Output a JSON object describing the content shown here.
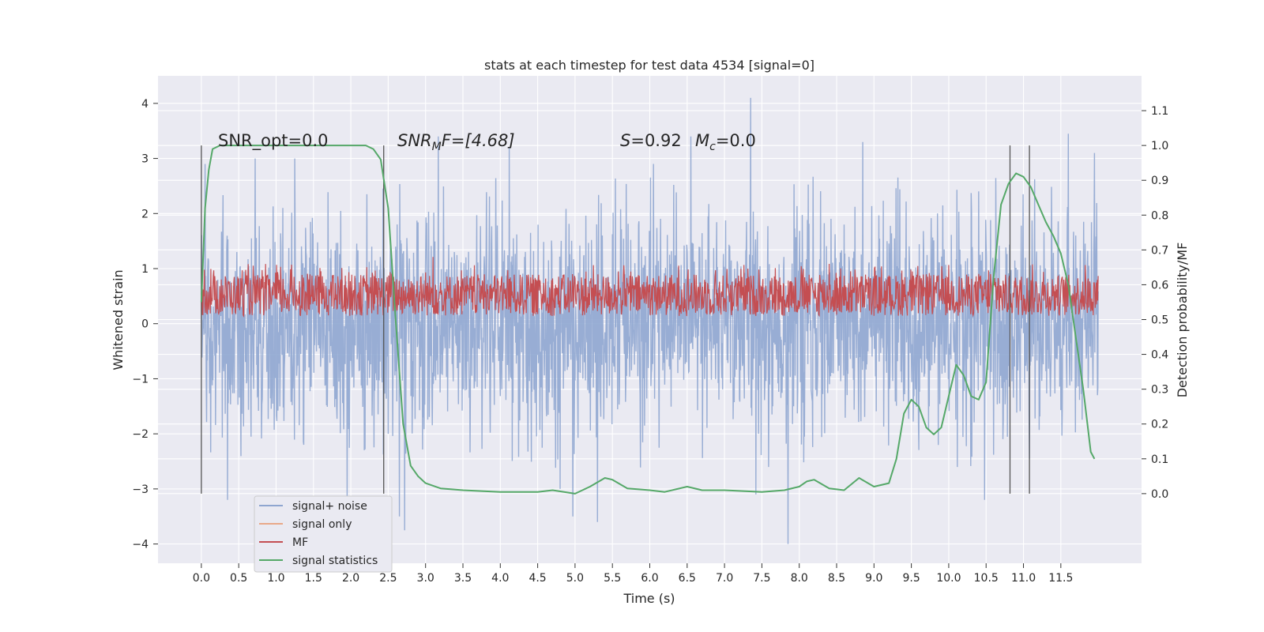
{
  "chart_data": {
    "type": "line",
    "title": "stats at each timestep for test data 4534 [signal=0]",
    "xlabel": "Time (s)",
    "ylabel_left": "Whitened strain",
    "ylabel_right": "Detection probability/MF",
    "xlim": [
      -0.58,
      12.58
    ],
    "ylim_left": [
      -4.35,
      4.5
    ],
    "ylim_right": [
      -0.2,
      1.2
    ],
    "x_ticks": [
      0.0,
      0.5,
      1.0,
      1.5,
      2.0,
      2.5,
      3.0,
      3.5,
      4.0,
      4.5,
      5.0,
      5.5,
      6.0,
      6.5,
      7.0,
      7.5,
      8.0,
      8.5,
      9.0,
      9.5,
      10.0,
      10.5,
      11.0,
      11.5
    ],
    "x_tick_labels": [
      "0.0",
      "0.5",
      "1.0",
      "1.5",
      "2.0",
      "2.5",
      "3.0",
      "3.5",
      "4.0",
      "4.5",
      "5.0",
      "5.5",
      "6.0",
      "6.5",
      "7.0",
      "7.5",
      "8.0",
      "8.5",
      "9.0",
      "9.5",
      "10.0",
      "10.5",
      "11.0",
      "11.5"
    ],
    "y_left_ticks": [
      4,
      3,
      2,
      1,
      0,
      -1,
      -2,
      -3,
      -4
    ],
    "y_left_tick_labels": [
      "4",
      "3",
      "2",
      "1",
      "0",
      "−1",
      "−2",
      "−3",
      "−4"
    ],
    "y_right_ticks": [
      1.1,
      1.0,
      0.9,
      0.8,
      0.7,
      0.6,
      0.5,
      0.4,
      0.3,
      0.2,
      0.1,
      0.0
    ],
    "y_right_tick_labels": [
      "1.1",
      "1.0",
      "0.9",
      "0.8",
      "0.7",
      "0.6",
      "0.5",
      "0.4",
      "0.3",
      "0.2",
      "0.1",
      "0.0"
    ],
    "grid": true,
    "legend_placement": "lower-left",
    "annotations": {
      "snr_opt": "SNR_opt=0.0",
      "snr_mf_main": "SNR",
      "snr_mf_sub": "M",
      "snr_mf_rest": "F=[4.68]",
      "s_label": "S",
      "s_value": "=0.92",
      "mc_label": "M",
      "mc_sub": "c",
      "mc_value": "=0.0"
    },
    "vertical_lines_x": [
      0.0,
      2.44,
      10.82,
      11.08
    ],
    "series": [
      {
        "name": "signal+ noise",
        "color": "#8fa6d0",
        "axis": "left",
        "time_range": [
          0.0,
          12.0
        ],
        "envelope_upper": [
          2.3,
          2.6,
          2.7,
          2.6,
          2.8,
          2.7,
          2.5,
          2.6,
          2.7,
          2.8,
          2.6,
          2.7,
          2.9,
          2.7,
          2.6,
          2.8,
          2.7,
          2.9,
          2.7,
          2.6,
          2.8,
          2.6,
          2.7,
          2.5
        ],
        "envelope_lower": [
          -2.3,
          -2.5,
          -2.7,
          -2.6,
          -2.5,
          -2.7,
          -2.8,
          -2.6,
          -2.5,
          -2.6,
          -2.9,
          -2.8,
          -2.7,
          -2.6,
          -2.5,
          -2.7,
          -2.8,
          -2.6,
          -2.5,
          -2.6,
          -2.7,
          -2.6,
          -2.5,
          -2.4
        ],
        "peaks": [
          [
            0.05,
            2.9
          ],
          [
            0.35,
            -3.2
          ],
          [
            0.72,
            3.0
          ],
          [
            1.25,
            3.0
          ],
          [
            1.95,
            -3.4
          ],
          [
            2.65,
            -3.5
          ],
          [
            2.72,
            -3.75
          ],
          [
            3.17,
            3.4
          ],
          [
            4.12,
            3.2
          ],
          [
            4.8,
            -3.0
          ],
          [
            4.97,
            -3.5
          ],
          [
            5.3,
            -3.6
          ],
          [
            6.05,
            2.9
          ],
          [
            6.55,
            3.4
          ],
          [
            7.35,
            4.1
          ],
          [
            7.42,
            -3.1
          ],
          [
            7.85,
            -4.0
          ],
          [
            8.85,
            3.3
          ],
          [
            10.48,
            -3.2
          ],
          [
            11.6,
            3.45
          ],
          [
            11.95,
            3.1
          ]
        ]
      },
      {
        "name": "signal only",
        "color": "#e9a989",
        "axis": "left",
        "values": []
      },
      {
        "name": "MF",
        "color": "#c44e52",
        "axis": "right",
        "time_range": [
          0.0,
          12.0
        ],
        "band": [
          0.51,
          0.63
        ],
        "peaks": [
          [
            3.1,
            0.68
          ],
          [
            8.4,
            0.66
          ],
          [
            9.7,
            0.63
          ]
        ]
      },
      {
        "name": "signal statistics",
        "color": "#55a868",
        "axis": "right",
        "x": [
          0.0,
          0.05,
          0.1,
          0.15,
          0.25,
          0.5,
          1.0,
          1.5,
          2.0,
          2.2,
          2.3,
          2.4,
          2.5,
          2.6,
          2.7,
          2.8,
          2.9,
          3.0,
          3.2,
          3.5,
          4.0,
          4.5,
          4.7,
          5.0,
          5.2,
          5.4,
          5.5,
          5.7,
          6.0,
          6.2,
          6.5,
          6.7,
          7.0,
          7.5,
          7.8,
          8.0,
          8.1,
          8.2,
          8.4,
          8.6,
          8.8,
          9.0,
          9.2,
          9.3,
          9.4,
          9.5,
          9.6,
          9.7,
          9.8,
          9.9,
          10.0,
          10.1,
          10.2,
          10.3,
          10.4,
          10.5,
          10.6,
          10.7,
          10.8,
          10.9,
          11.0,
          11.1,
          11.2,
          11.3,
          11.4,
          11.5,
          11.6,
          11.7,
          11.8,
          11.9,
          11.95
        ],
        "values": [
          0.55,
          0.82,
          0.93,
          0.99,
          1.0,
          1.0,
          1.0,
          1.0,
          1.0,
          1.0,
          0.99,
          0.96,
          0.82,
          0.5,
          0.2,
          0.08,
          0.05,
          0.03,
          0.015,
          0.01,
          0.005,
          0.005,
          0.01,
          0.0,
          0.02,
          0.045,
          0.04,
          0.015,
          0.01,
          0.005,
          0.02,
          0.01,
          0.01,
          0.005,
          0.01,
          0.02,
          0.035,
          0.04,
          0.015,
          0.01,
          0.045,
          0.02,
          0.03,
          0.1,
          0.23,
          0.27,
          0.25,
          0.19,
          0.17,
          0.19,
          0.28,
          0.37,
          0.34,
          0.28,
          0.27,
          0.32,
          0.62,
          0.83,
          0.89,
          0.92,
          0.91,
          0.88,
          0.83,
          0.78,
          0.74,
          0.69,
          0.6,
          0.45,
          0.3,
          0.12,
          0.1
        ]
      }
    ]
  }
}
